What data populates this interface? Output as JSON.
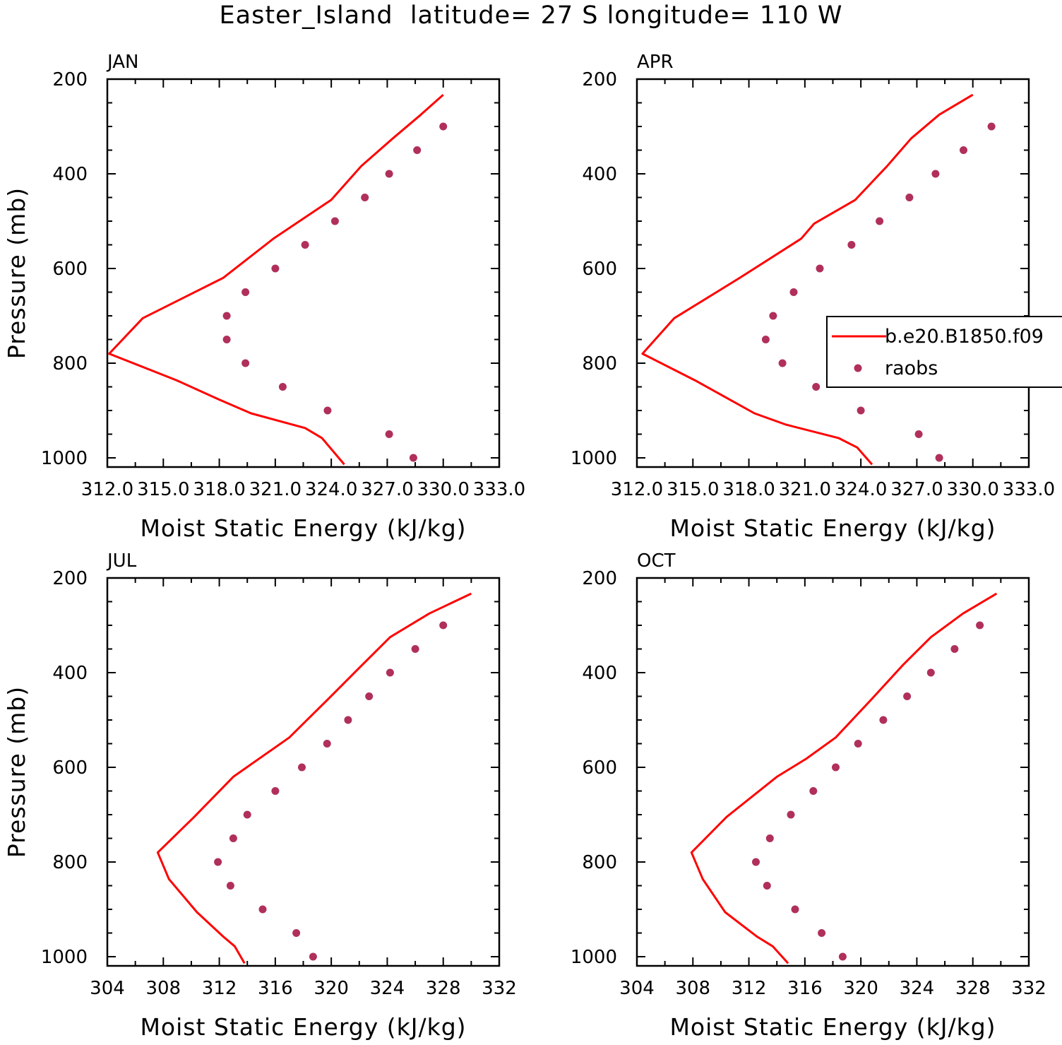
{
  "title": "Easter_Island  latitude= 27 S longitude= 110 W",
  "colors": {
    "model": "#ff0000",
    "obs": "#b0305a",
    "axis": "#000000"
  },
  "legend": {
    "placement": "right of APR panel",
    "entries": [
      {
        "label": "b.e20.B1850.f09",
        "style": "line",
        "color": "#ff0000"
      },
      {
        "label": "raobs",
        "style": "marker",
        "color": "#b0305a"
      }
    ]
  },
  "chart_data": [
    {
      "type": "line",
      "panel": "JAN",
      "title": "JAN",
      "xlabel": "Moist Static Energy (kJ/kg)",
      "ylabel": "Pressure (mb)",
      "xlim": [
        312.0,
        333.0
      ],
      "xticks": [
        312,
        315,
        318,
        321,
        324,
        327,
        330,
        333
      ],
      "xtick_labels": [
        "312.0",
        "315.0",
        "318.0",
        "321.0",
        "324.0",
        "327.0",
        "330.0",
        "333.0"
      ],
      "ylim": [
        1020,
        200
      ],
      "yticks": [
        200,
        400,
        600,
        800,
        1000
      ],
      "series": [
        {
          "name": "b.e20.B1850.f09",
          "style": "line",
          "x": [
            330.0,
            328.8,
            327.3,
            325.6,
            324.0,
            320.9,
            318.2,
            313.9,
            312.1,
            315.7,
            318.0,
            319.7,
            322.6,
            323.5,
            324.7
          ],
          "y": [
            233,
            275,
            325,
            384,
            455,
            537,
            620,
            705,
            780,
            836,
            877,
            906,
            937,
            958,
            1014
          ]
        },
        {
          "name": "raobs",
          "style": "marker",
          "x": [
            330.0,
            328.6,
            327.1,
            325.8,
            324.2,
            322.6,
            321.0,
            319.4,
            318.4,
            318.4,
            319.4,
            321.4,
            323.8,
            327.1,
            328.4
          ],
          "y": [
            300,
            350,
            400,
            450,
            500,
            550,
            600,
            650,
            700,
            750,
            800,
            850,
            900,
            950,
            1000
          ]
        }
      ]
    },
    {
      "type": "line",
      "panel": "APR",
      "title": "APR",
      "xlabel": "Moist Static Energy (kJ/kg)",
      "ylabel": "",
      "xlim": [
        312.0,
        333.0
      ],
      "xticks": [
        312,
        315,
        318,
        321,
        324,
        327,
        330,
        333
      ],
      "xtick_labels": [
        "312.0",
        "315.0",
        "318.0",
        "321.0",
        "324.0",
        "327.0",
        "330.0",
        "333.0"
      ],
      "ylim": [
        1020,
        200
      ],
      "yticks": [
        200,
        400,
        600,
        800,
        1000
      ],
      "series": [
        {
          "name": "b.e20.B1850.f09",
          "style": "line",
          "x": [
            330.0,
            328.2,
            326.7,
            325.4,
            323.7,
            321.5,
            320.8,
            317.5,
            314.0,
            312.3,
            315.1,
            318.3,
            320.0,
            322.8,
            323.8,
            324.6
          ],
          "y": [
            233,
            275,
            325,
            384,
            455,
            505,
            537,
            620,
            705,
            780,
            836,
            906,
            930,
            958,
            978,
            1014
          ]
        },
        {
          "name": "raobs",
          "style": "marker",
          "x": [
            331.0,
            329.5,
            328.0,
            326.6,
            325.0,
            323.5,
            321.8,
            320.4,
            319.3,
            318.9,
            319.8,
            321.6,
            324.0,
            327.1,
            328.2
          ],
          "y": [
            300,
            350,
            400,
            450,
            500,
            550,
            600,
            650,
            700,
            750,
            800,
            850,
            900,
            950,
            1000
          ]
        }
      ]
    },
    {
      "type": "line",
      "panel": "JUL",
      "title": "JUL",
      "xlabel": "Moist Static Energy (kJ/kg)",
      "ylabel": "Pressure (mb)",
      "xlim": [
        304,
        332
      ],
      "xticks": [
        304,
        308,
        312,
        316,
        320,
        324,
        328,
        332
      ],
      "xtick_labels": [
        "304",
        "308",
        "312",
        "316",
        "320",
        "324",
        "328",
        "332"
      ],
      "ylim": [
        1020,
        200
      ],
      "yticks": [
        200,
        400,
        600,
        800,
        1000
      ],
      "series": [
        {
          "name": "b.e20.B1850.f09",
          "style": "line",
          "x": [
            330.0,
            327.0,
            324.2,
            322.2,
            319.8,
            317.0,
            313.0,
            310.2,
            307.6,
            308.4,
            310.4,
            312.3,
            313.1,
            313.8
          ],
          "y": [
            233,
            275,
            325,
            384,
            455,
            537,
            620,
            705,
            780,
            836,
            906,
            958,
            978,
            1014
          ]
        },
        {
          "name": "raobs",
          "style": "marker",
          "x": [
            328.0,
            326.0,
            324.2,
            322.7,
            321.2,
            319.7,
            317.9,
            316.0,
            314.0,
            313.0,
            311.9,
            312.8,
            315.1,
            317.5,
            318.7
          ],
          "y": [
            300,
            350,
            400,
            450,
            500,
            550,
            600,
            650,
            700,
            750,
            800,
            850,
            900,
            950,
            1000
          ]
        }
      ]
    },
    {
      "type": "line",
      "panel": "OCT",
      "title": "OCT",
      "xlabel": "Moist Static Energy (kJ/kg)",
      "ylabel": "",
      "xlim": [
        304,
        332
      ],
      "xticks": [
        304,
        308,
        312,
        316,
        320,
        324,
        328,
        332
      ],
      "xtick_labels": [
        "304",
        "308",
        "312",
        "316",
        "320",
        "324",
        "328",
        "332"
      ],
      "ylim": [
        1020,
        200
      ],
      "yticks": [
        200,
        400,
        600,
        800,
        1000
      ],
      "series": [
        {
          "name": "b.e20.B1850.f09",
          "style": "line",
          "x": [
            329.7,
            327.3,
            325.0,
            323.0,
            320.8,
            318.2,
            316.1,
            314.0,
            310.4,
            307.9,
            308.7,
            310.3,
            312.6,
            313.7,
            314.8
          ],
          "y": [
            233,
            275,
            325,
            384,
            455,
            537,
            582,
            620,
            705,
            780,
            836,
            906,
            958,
            978,
            1014
          ]
        },
        {
          "name": "raobs",
          "style": "marker",
          "x": [
            328.5,
            326.7,
            325.0,
            323.3,
            321.6,
            319.8,
            318.2,
            316.6,
            315.0,
            313.5,
            312.5,
            313.3,
            315.3,
            317.2,
            318.7
          ],
          "y": [
            300,
            350,
            400,
            450,
            500,
            550,
            600,
            650,
            700,
            750,
            800,
            850,
            900,
            950,
            1000
          ]
        }
      ]
    }
  ]
}
